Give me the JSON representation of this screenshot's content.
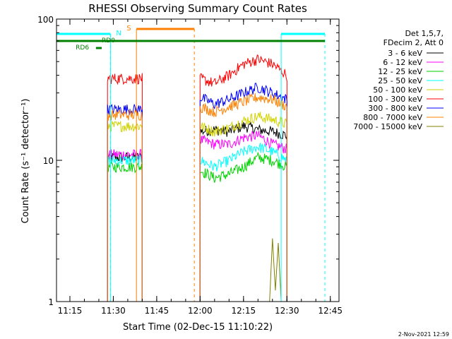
{
  "chart_data": {
    "type": "line",
    "title": "RHESSI Observing Summary Count Rates",
    "xlabel": "Start Time (02-Dec-15 11:10:22)",
    "ylabel": "Count Rate (s⁻¹ detector⁻¹)",
    "y_scale": "log",
    "ylim": [
      1,
      100
    ],
    "xlim": [
      "11:10:22",
      "12:48"
    ],
    "x_ticks": [
      "11:15",
      "11:30",
      "11:45",
      "12:00",
      "12:15",
      "12:30",
      "12:45"
    ],
    "y_ticks": [
      "1",
      "10",
      "100"
    ],
    "legend": {
      "placement": "right",
      "header": [
        "Det 1,5,7,",
        "FDecim 2, Att 0"
      ],
      "entries": [
        {
          "label": "3 - 6 keV",
          "color": "#000000"
        },
        {
          "label": "6 - 12 keV",
          "color": "#ff00ff"
        },
        {
          "label": "12 - 25 keV",
          "color": "#00d200"
        },
        {
          "label": "25 - 50 keV",
          "color": "#00ffff"
        },
        {
          "label": "50 - 100 keV",
          "color": "#d2d200"
        },
        {
          "label": "100 - 300 keV",
          "color": "#ff0000"
        },
        {
          "label": "300 - 800 keV",
          "color": "#0000ff"
        },
        {
          "label": "800 - 7000 keV",
          "color": "#ff8000"
        },
        {
          "label": "7000 - 15000 keV",
          "color": "#808000"
        }
      ]
    },
    "series": [
      {
        "name": "3 - 6 keV",
        "color": "#000000",
        "x": [
          "11:28",
          "11:32",
          "11:36",
          "11:40",
          "12:00",
          "12:05",
          "12:10",
          "12:15",
          "12:20",
          "12:25",
          "12:30"
        ],
        "y": [
          10.5,
          10.5,
          10.5,
          10.5,
          16,
          16.5,
          16,
          17.5,
          16.5,
          16,
          15
        ]
      },
      {
        "name": "6 - 12 keV",
        "color": "#ff00ff",
        "x": [
          "11:28",
          "11:32",
          "11:36",
          "11:40",
          "12:00",
          "12:05",
          "12:10",
          "12:15",
          "12:20",
          "12:25",
          "12:30"
        ],
        "y": [
          11,
          11,
          11,
          11,
          14,
          13,
          13,
          14.5,
          15,
          13,
          12
        ]
      },
      {
        "name": "12 - 25 keV",
        "color": "#00d200",
        "x": [
          "11:28",
          "11:32",
          "11:36",
          "11:40",
          "12:00",
          "12:05",
          "12:10",
          "12:15",
          "12:20",
          "12:25",
          "12:30"
        ],
        "y": [
          9,
          9,
          9,
          9,
          8.5,
          7.5,
          8,
          9,
          10.5,
          10,
          9
        ]
      },
      {
        "name": "25 - 50 keV",
        "color": "#00ffff",
        "x": [
          "11:28",
          "11:32",
          "11:36",
          "11:40",
          "12:00",
          "12:05",
          "12:10",
          "12:15",
          "12:20",
          "12:25",
          "12:30"
        ],
        "y": [
          10,
          10,
          10,
          10,
          10,
          9,
          10,
          11.5,
          12.5,
          11.5,
          10
        ]
      },
      {
        "name": "50 - 100 keV",
        "color": "#d2d200",
        "x": [
          "11:28",
          "11:32",
          "11:36",
          "11:40",
          "12:00",
          "12:05",
          "12:10",
          "12:15",
          "12:20",
          "12:25",
          "12:30"
        ],
        "y": [
          17.5,
          17.5,
          17.5,
          17.5,
          17.5,
          16,
          17,
          19,
          20.5,
          19.5,
          18
        ]
      },
      {
        "name": "100 - 300 keV",
        "color": "#ff0000",
        "x": [
          "11:28",
          "11:32",
          "11:36",
          "11:40",
          "12:00",
          "12:05",
          "12:10",
          "12:15",
          "12:20",
          "12:25",
          "12:30"
        ],
        "y": [
          38,
          38,
          38,
          38,
          38,
          35,
          40,
          48,
          52,
          48,
          40
        ]
      },
      {
        "name": "300 - 800 keV",
        "color": "#0000ff",
        "x": [
          "11:28",
          "11:32",
          "11:36",
          "11:40",
          "12:00",
          "12:05",
          "12:10",
          "12:15",
          "12:20",
          "12:25",
          "12:30"
        ],
        "y": [
          23,
          23,
          23,
          23,
          28,
          25,
          27,
          30,
          33,
          30,
          27
        ]
      },
      {
        "name": "800 - 7000 keV",
        "color": "#ff8000",
        "x": [
          "11:28",
          "11:32",
          "11:36",
          "11:40",
          "12:00",
          "12:05",
          "12:10",
          "12:15",
          "12:20",
          "12:25",
          "12:30"
        ],
        "y": [
          21,
          21,
          21,
          21,
          24,
          22,
          24,
          26,
          28,
          27,
          24
        ]
      },
      {
        "name": "7000 - 15000 keV",
        "color": "#808000",
        "x": [
          "12:24",
          "12:25",
          "12:26",
          "12:27",
          "12:28"
        ],
        "y": [
          1,
          2.8,
          1.2,
          2.6,
          1
        ]
      }
    ],
    "annotations": [
      {
        "label": "N",
        "color": "#00ffff"
      },
      {
        "label": "S",
        "color": "#ff8000"
      },
      {
        "label": "RD0",
        "color": "#008000"
      },
      {
        "label": "RD6",
        "color": "#008000"
      }
    ]
  },
  "footer": {
    "date": "2-Nov-2021 12:59"
  }
}
